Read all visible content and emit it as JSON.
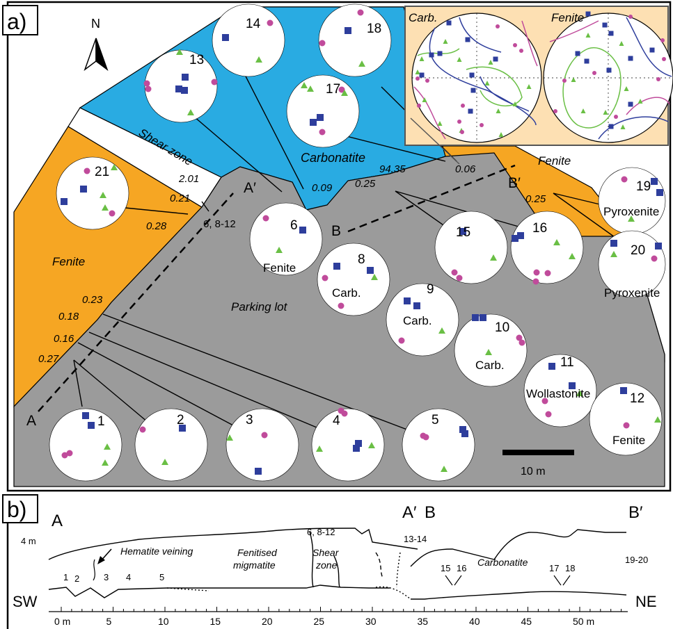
{
  "panel_a": {
    "label": "a)",
    "north": "N",
    "units": {
      "fenite_w": "Fenite",
      "fenite_e": "Fenite",
      "carbonatite": "Carbonatite",
      "shear_zone": "Shear zone",
      "parking_lot": "Parking lot"
    },
    "measurements": {
      "m201": "2.01",
      "m021": "0.21",
      "m028": "0.28",
      "m009": "0.09",
      "m9435": "94.35",
      "m025a": "0.25",
      "m006": "0.06",
      "m025b": "0.25",
      "m023": "0.23",
      "m018": "0.18",
      "m016": "0.16",
      "m027": "0.27"
    },
    "section_markers": {
      "A": "A",
      "A_prime": "A′",
      "B": "B",
      "B_prime": "B′"
    },
    "site_group_label": "6, 8-12",
    "scale_bar": "10 m",
    "inset": {
      "left_title": "Carb.",
      "right_title": "Fenite"
    },
    "stereonets": [
      {
        "id": "1",
        "rock": ""
      },
      {
        "id": "2",
        "rock": ""
      },
      {
        "id": "3",
        "rock": ""
      },
      {
        "id": "4",
        "rock": ""
      },
      {
        "id": "5",
        "rock": ""
      },
      {
        "id": "6",
        "rock": "Fenite"
      },
      {
        "id": "8",
        "rock": "Carb."
      },
      {
        "id": "9",
        "rock": "Carb."
      },
      {
        "id": "10",
        "rock": "Carb."
      },
      {
        "id": "11",
        "rock": "Wollastonite"
      },
      {
        "id": "12",
        "rock": "Fenite"
      },
      {
        "id": "13",
        "rock": ""
      },
      {
        "id": "14",
        "rock": ""
      },
      {
        "id": "15",
        "rock": ""
      },
      {
        "id": "16",
        "rock": ""
      },
      {
        "id": "17",
        "rock": ""
      },
      {
        "id": "18",
        "rock": ""
      },
      {
        "id": "19",
        "rock": "Pyroxenite"
      },
      {
        "id": "20",
        "rock": "Pyroxenite"
      },
      {
        "id": "21",
        "rock": ""
      }
    ],
    "colors": {
      "fenite": "#f6a623",
      "carbonatite": "#29abe2",
      "parking": "#9b9b9b",
      "square": "#2e3e9c",
      "dot": "#c04b9b",
      "triangle": "#6abf45",
      "inset_bg": "#fde0b3"
    }
  },
  "panel_b": {
    "label": "b)",
    "A": "A",
    "A_prime": "A′",
    "B": "B",
    "B_prime": "B′",
    "height_label": "4 m",
    "SW": "SW",
    "NE": "NE",
    "hematite": "Hematite veining",
    "fenitised_1": "Fenitised",
    "fenitised_2": "migmatite",
    "shear_1": "Shear",
    "shear_2": "zone",
    "carbonatite": "Carbonatite",
    "sites": {
      "s1": "1",
      "s2": "2",
      "s3": "3",
      "s4": "4",
      "s5": "5",
      "s6": "6, 8-12",
      "s1314": "13-14",
      "s15": "15",
      "s16": "16",
      "s17": "17",
      "s18": "18",
      "s1920": "19-20"
    },
    "ticks": [
      "0 m",
      "5",
      "10",
      "15",
      "20",
      "25",
      "30",
      "35",
      "40",
      "45",
      "50 m"
    ]
  }
}
